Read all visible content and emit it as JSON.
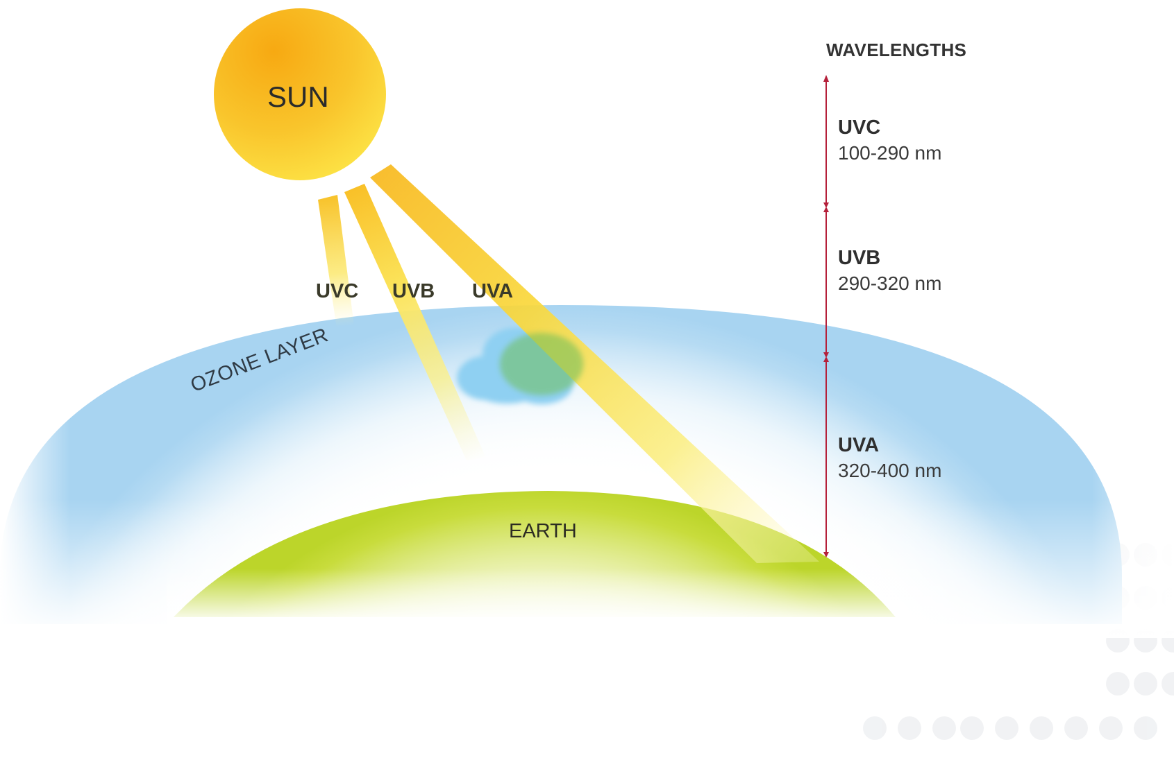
{
  "sun": {
    "label": "SUN"
  },
  "rays": [
    {
      "label": "UVC"
    },
    {
      "label": "UVB"
    },
    {
      "label": "UVA"
    }
  ],
  "ozone_layer": {
    "label": "OZONE LAYER"
  },
  "earth": {
    "label": "EARTH"
  },
  "wavelengths": {
    "title": "WAVELENGTHS",
    "bands": [
      {
        "name": "UVC",
        "range": "100-290 nm"
      },
      {
        "name": "UVB",
        "range": "290-320 nm"
      },
      {
        "name": "UVA",
        "range": "320-400 nm"
      }
    ]
  },
  "colors": {
    "sun": "#f7b923",
    "ray": "#f9d63a",
    "ozone": "#a9d3f0",
    "cloud": "#8fd0f2",
    "earth": "#c2d92c",
    "scale_line": "#b5203a"
  }
}
